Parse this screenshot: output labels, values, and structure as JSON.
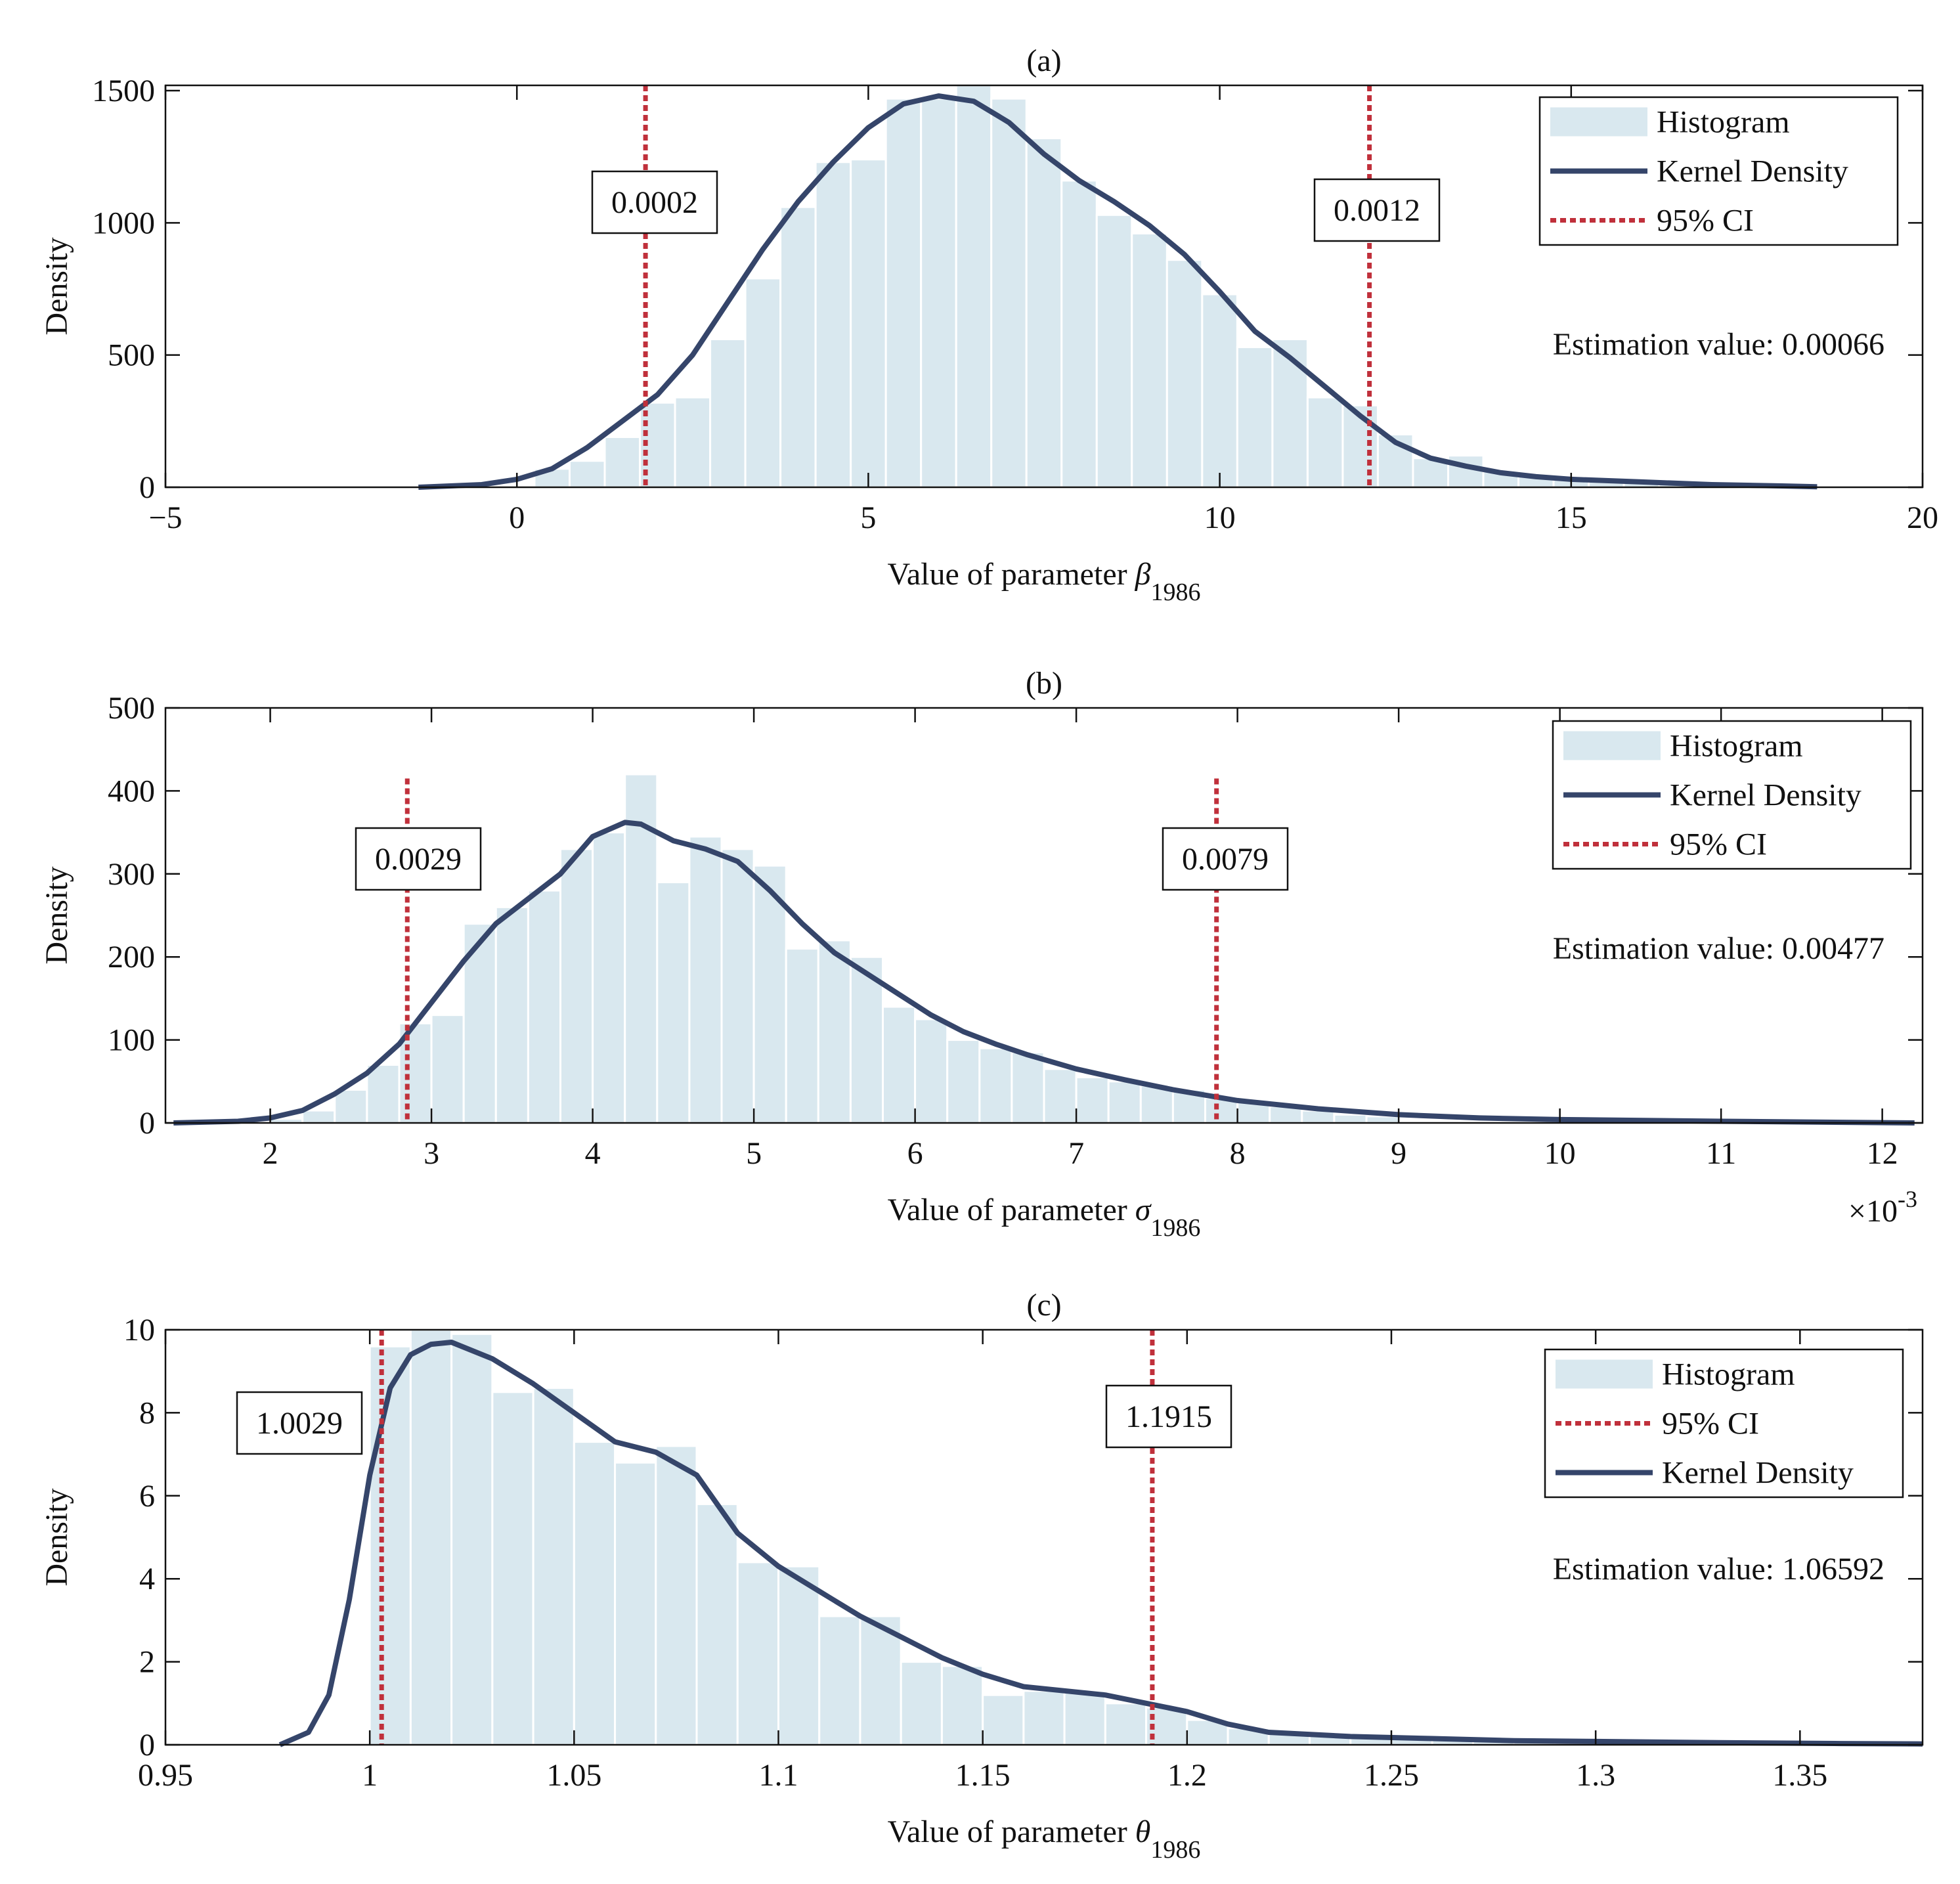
{
  "chart_data": [
    {
      "panel": "(a)",
      "type": "bar",
      "title": "(a)",
      "ylabel": "Density",
      "xlabel": "Value of parameter ",
      "xlabel_symbol": "β",
      "xlabel_sub": "1986",
      "xlim": [
        -5,
        20
      ],
      "ylim": [
        0,
        1520
      ],
      "xticks": [
        -5,
        0,
        5,
        10,
        15,
        20
      ],
      "xtick_labels": [
        "−5",
        "0",
        "5",
        "10",
        "15",
        "20"
      ],
      "yticks": [
        0,
        500,
        1000,
        1500
      ],
      "ytick_labels": [
        "0",
        "500",
        "1000",
        "1500"
      ],
      "hist_edges": [
        0.25,
        0.75,
        1.25,
        1.75,
        2.25,
        2.75,
        3.25,
        3.75,
        4.25,
        4.75,
        5.25,
        5.75,
        6.25,
        6.75,
        7.25,
        7.75,
        8.25,
        8.75,
        9.25,
        9.75,
        10.25,
        10.75,
        11.25,
        11.75,
        12.25,
        12.75,
        13.25,
        13.75,
        14.25,
        14.75,
        15.25,
        15.75,
        16.25,
        16.75,
        17.25,
        17.75,
        18.25
      ],
      "hist_values": [
        70,
        100,
        190,
        320,
        340,
        560,
        790,
        1060,
        1230,
        1240,
        1470,
        1470,
        1520,
        1470,
        1320,
        1160,
        1030,
        960,
        860,
        730,
        530,
        560,
        340,
        310,
        200,
        110,
        120,
        60,
        45,
        35,
        25,
        20,
        15,
        10,
        8,
        5
      ],
      "kde": {
        "name": "Kernel Density",
        "x": [
          -1.4,
          -0.5,
          0,
          0.5,
          1.0,
          1.5,
          2.0,
          2.5,
          3.0,
          3.5,
          4.0,
          4.5,
          5.0,
          5.5,
          6.0,
          6.5,
          7.0,
          7.5,
          8.0,
          8.5,
          9.0,
          9.5,
          10.0,
          10.5,
          11.0,
          11.5,
          12.0,
          12.5,
          13.0,
          13.5,
          14.0,
          14.5,
          15.0,
          16.0,
          17.0,
          18.0,
          18.5
        ],
        "y": [
          0,
          10,
          30,
          70,
          150,
          250,
          350,
          500,
          700,
          900,
          1080,
          1230,
          1360,
          1450,
          1480,
          1460,
          1380,
          1260,
          1160,
          1080,
          990,
          880,
          740,
          590,
          490,
          380,
          270,
          170,
          110,
          80,
          55,
          40,
          30,
          20,
          10,
          5,
          2
        ]
      },
      "ci": [
        1.83,
        12.13
      ],
      "ci_labels": [
        "0.0002",
        "0.0012"
      ],
      "legend": [
        "Histogram",
        "Kernel Density",
        "95% CI"
      ],
      "legend_placement": "top-right",
      "annotation": "Estimation value: 0.00066",
      "exponent_label": ""
    },
    {
      "panel": "(b)",
      "type": "bar",
      "title": "(b)",
      "ylabel": "Density",
      "xlabel": "Value of parameter ",
      "xlabel_symbol": "σ",
      "xlabel_sub": "1986",
      "xlim": [
        1.35,
        12.25
      ],
      "ylim": [
        0,
        500
      ],
      "xticks": [
        2,
        3,
        4,
        5,
        6,
        7,
        8,
        9,
        10,
        11,
        12
      ],
      "xtick_labels": [
        "2",
        "3",
        "4",
        "5",
        "6",
        "7",
        "8",
        "9",
        "10",
        "11",
        "12"
      ],
      "yticks": [
        0,
        100,
        200,
        300,
        400,
        500
      ],
      "ytick_labels": [
        "0",
        "100",
        "200",
        "300",
        "400",
        "500"
      ],
      "hist_edges": [
        2.0,
        2.2,
        2.4,
        2.6,
        2.8,
        3.0,
        3.2,
        3.4,
        3.6,
        3.8,
        4.0,
        4.2,
        4.4,
        4.6,
        4.8,
        5.0,
        5.2,
        5.4,
        5.6,
        5.8,
        6.0,
        6.2,
        6.4,
        6.6,
        6.8,
        7.0,
        7.2,
        7.4,
        7.6,
        7.8,
        8.0,
        8.2,
        8.4,
        8.6,
        8.8,
        9.0
      ],
      "hist_values": [
        5,
        15,
        40,
        70,
        120,
        130,
        240,
        260,
        280,
        330,
        350,
        420,
        290,
        345,
        330,
        310,
        210,
        220,
        200,
        140,
        125,
        100,
        90,
        85,
        65,
        55,
        50,
        45,
        40,
        30,
        25,
        20,
        15,
        10,
        8
      ],
      "kde": {
        "name": "Kernel Density",
        "x": [
          1.4,
          1.8,
          2.0,
          2.2,
          2.4,
          2.6,
          2.8,
          3.0,
          3.2,
          3.4,
          3.6,
          3.8,
          4.0,
          4.2,
          4.3,
          4.5,
          4.7,
          4.9,
          5.1,
          5.3,
          5.5,
          5.7,
          5.9,
          6.1,
          6.3,
          6.5,
          6.7,
          7.0,
          7.3,
          7.6,
          8.0,
          8.5,
          9.0,
          9.5,
          10.0,
          11.0,
          12.2
        ],
        "y": [
          0,
          2,
          6,
          15,
          35,
          60,
          95,
          145,
          195,
          240,
          270,
          300,
          345,
          362,
          360,
          340,
          330,
          315,
          280,
          240,
          205,
          180,
          155,
          130,
          110,
          95,
          82,
          65,
          52,
          40,
          27,
          17,
          10,
          6,
          4,
          2,
          0
        ]
      },
      "ci": [
        2.85,
        7.87
      ],
      "ci_labels": [
        "0.0029",
        "0.0079"
      ],
      "legend": [
        "Histogram",
        "Kernel Density",
        "95% CI"
      ],
      "legend_placement": "top-right",
      "annotation": "Estimation value: 0.00477",
      "exponent_label": "×10",
      "exponent_power": "-3"
    },
    {
      "panel": "(c)",
      "type": "bar",
      "title": "(c)",
      "ylabel": "Density",
      "xlabel": "Value of parameter ",
      "xlabel_symbol": "θ",
      "xlabel_sub": "1986",
      "xlim": [
        0.95,
        1.38
      ],
      "ylim": [
        0,
        10
      ],
      "xticks": [
        0.95,
        1.0,
        1.05,
        1.1,
        1.15,
        1.2,
        1.25,
        1.3,
        1.35
      ],
      "xtick_labels": [
        "0.95",
        "1",
        "1.05",
        "1.1",
        "1.15",
        "1.2",
        "1.25",
        "1.3",
        "1.35"
      ],
      "yticks": [
        0,
        2,
        4,
        6,
        8,
        10
      ],
      "ytick_labels": [
        "0",
        "2",
        "4",
        "6",
        "8",
        "10"
      ],
      "hist_edges": [
        1.0,
        1.01,
        1.02,
        1.03,
        1.04,
        1.05,
        1.06,
        1.07,
        1.08,
        1.09,
        1.1,
        1.11,
        1.12,
        1.13,
        1.14,
        1.15,
        1.16,
        1.17,
        1.18,
        1.19,
        1.2,
        1.21,
        1.22,
        1.23,
        1.24,
        1.25,
        1.26,
        1.27,
        1.28,
        1.29,
        1.3,
        1.31,
        1.32,
        1.33,
        1.34,
        1.35,
        1.36,
        1.37,
        1.38
      ],
      "hist_values": [
        9.6,
        10.0,
        9.9,
        8.5,
        8.6,
        7.3,
        6.8,
        7.2,
        5.8,
        4.4,
        4.3,
        3.1,
        3.1,
        2.0,
        1.9,
        1.2,
        1.3,
        1.3,
        1.0,
        0.9,
        0.6,
        0.4,
        0.3,
        0.25,
        0.2,
        0.2,
        0.15,
        0.12,
        0.1,
        0.08,
        0.08,
        0.07,
        0.06,
        0.05,
        0.05,
        0.04,
        0.03,
        0.03
      ],
      "kde": {
        "name": "Kernel Density",
        "x": [
          0.978,
          0.985,
          0.99,
          0.995,
          1.0,
          1.005,
          1.01,
          1.015,
          1.02,
          1.03,
          1.04,
          1.05,
          1.06,
          1.07,
          1.08,
          1.09,
          1.1,
          1.11,
          1.12,
          1.13,
          1.14,
          1.15,
          1.16,
          1.17,
          1.18,
          1.19,
          1.2,
          1.21,
          1.22,
          1.24,
          1.26,
          1.28,
          1.3,
          1.33,
          1.36,
          1.38
        ],
        "y": [
          0,
          0.3,
          1.2,
          3.5,
          6.5,
          8.6,
          9.4,
          9.65,
          9.7,
          9.3,
          8.7,
          8.0,
          7.3,
          7.05,
          6.5,
          5.1,
          4.3,
          3.7,
          3.1,
          2.6,
          2.1,
          1.7,
          1.4,
          1.3,
          1.2,
          1.0,
          0.8,
          0.5,
          0.3,
          0.2,
          0.15,
          0.1,
          0.08,
          0.05,
          0.03,
          0.02
        ]
      },
      "ci": [
        1.0029,
        1.1915
      ],
      "ci_labels": [
        "1.0029",
        "1.1915"
      ],
      "legend": [
        "Histogram",
        "95% CI",
        "Kernel Density"
      ],
      "legend_placement": "top-right",
      "annotation": "Estimation value: 1.06592",
      "exponent_label": ""
    }
  ],
  "colors": {
    "histogram": "#d9e8ef",
    "histogram_edge": "#ffffff",
    "kde": "#35456a",
    "ci": "#c0303b",
    "axis": "#111111"
  }
}
